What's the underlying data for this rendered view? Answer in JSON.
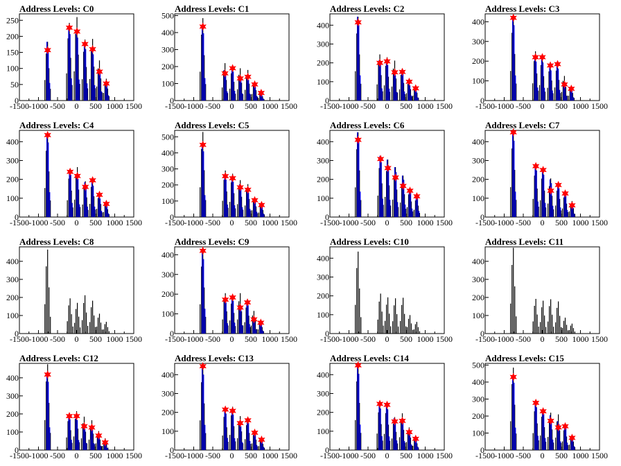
{
  "colors": {
    "histogram": "#000000",
    "fit": "#0000ee",
    "marker": "#ff0000",
    "frame": "#000000"
  },
  "chart_data": [
    {
      "type": "bar",
      "title": "Address Levels: C0",
      "xlim": [
        -1500,
        1500
      ],
      "ylim": [
        0,
        270
      ],
      "yticks": [
        0,
        50,
        100,
        150,
        200,
        250
      ],
      "xticks": [
        -1500,
        -1000,
        -500,
        0,
        500,
        1000,
        1500
      ],
      "peaks": [
        {
          "x": -760,
          "hist": 183,
          "fit": 183,
          "marker": 157
        },
        {
          "x": -190,
          "hist": 242,
          "fit": 230,
          "marker": 227
        },
        {
          "x": 10,
          "hist": 260,
          "fit": 218,
          "marker": 215
        },
        {
          "x": 220,
          "hist": 190,
          "fit": 178,
          "marker": 176
        },
        {
          "x": 420,
          "hist": 192,
          "fit": 160,
          "marker": 160
        },
        {
          "x": 600,
          "hist": 125,
          "fit": 95,
          "marker": 90
        },
        {
          "x": 780,
          "hist": 68,
          "fit": 55,
          "marker": 53
        }
      ]
    },
    {
      "type": "bar",
      "title": "Address Levels: C1",
      "xlim": [
        -1500,
        1500
      ],
      "ylim": [
        0,
        510
      ],
      "yticks": [
        0,
        100,
        200,
        300,
        400,
        500
      ],
      "xticks": [
        -1500,
        -1000,
        -500,
        0,
        500,
        1000,
        1500
      ],
      "peaks": [
        {
          "x": -760,
          "hist": 485,
          "fit": 440,
          "marker": 435
        },
        {
          "x": -180,
          "hist": 220,
          "fit": 180,
          "marker": 160
        },
        {
          "x": 20,
          "hist": 200,
          "fit": 190,
          "marker": 190
        },
        {
          "x": 220,
          "hist": 190,
          "fit": 140,
          "marker": 130
        },
        {
          "x": 420,
          "hist": 180,
          "fit": 135,
          "marker": 140
        },
        {
          "x": 600,
          "hist": 110,
          "fit": 90,
          "marker": 95
        },
        {
          "x": 770,
          "hist": 45,
          "fit": 40,
          "marker": 45
        }
      ]
    },
    {
      "type": "bar",
      "title": "Address Levels: C2",
      "xlim": [
        -1500,
        1500
      ],
      "ylim": [
        0,
        460
      ],
      "yticks": [
        0,
        100,
        200,
        300,
        400
      ],
      "xticks": [
        -1500,
        -1000,
        -500,
        0,
        500,
        1000,
        1500
      ],
      "peaks": [
        {
          "x": -760,
          "hist": 445,
          "fit": 445,
          "marker": 415
        },
        {
          "x": -190,
          "hist": 245,
          "fit": 215,
          "marker": 200
        },
        {
          "x": 0,
          "hist": 230,
          "fit": 210,
          "marker": 208
        },
        {
          "x": 200,
          "hist": 212,
          "fit": 150,
          "marker": 150
        },
        {
          "x": 400,
          "hist": 170,
          "fit": 160,
          "marker": 152
        },
        {
          "x": 580,
          "hist": 110,
          "fit": 90,
          "marker": 100
        },
        {
          "x": 750,
          "hist": 75,
          "fit": 55,
          "marker": 65
        }
      ]
    },
    {
      "type": "bar",
      "title": "Address Levels: C3",
      "xlim": [
        -1500,
        1500
      ],
      "ylim": [
        0,
        440
      ],
      "yticks": [
        0,
        100,
        200,
        300,
        400
      ],
      "xticks": [
        -1500,
        -1000,
        -500,
        0,
        500,
        1000,
        1500
      ],
      "peaks": [
        {
          "x": -760,
          "hist": 430,
          "fit": 425,
          "marker": 420
        },
        {
          "x": -180,
          "hist": 250,
          "fit": 220,
          "marker": 220
        },
        {
          "x": 0,
          "hist": 225,
          "fit": 215,
          "marker": 220
        },
        {
          "x": 210,
          "hist": 185,
          "fit": 170,
          "marker": 178
        },
        {
          "x": 400,
          "hist": 190,
          "fit": 180,
          "marker": 185
        },
        {
          "x": 580,
          "hist": 125,
          "fit": 80,
          "marker": 82
        },
        {
          "x": 760,
          "hist": 70,
          "fit": 55,
          "marker": 60
        }
      ]
    },
    {
      "type": "bar",
      "title": "Address Levels: C4",
      "xlim": [
        -1500,
        1500
      ],
      "ylim": [
        0,
        460
      ],
      "yticks": [
        0,
        100,
        200,
        300,
        400
      ],
      "xticks": [
        -1500,
        -1000,
        -500,
        0,
        500,
        1000,
        1500
      ],
      "peaks": [
        {
          "x": -760,
          "hist": 440,
          "fit": 440,
          "marker": 435
        },
        {
          "x": -170,
          "hist": 255,
          "fit": 250,
          "marker": 240
        },
        {
          "x": 20,
          "hist": 265,
          "fit": 225,
          "marker": 218
        },
        {
          "x": 230,
          "hist": 190,
          "fit": 185,
          "marker": 160
        },
        {
          "x": 420,
          "hist": 200,
          "fit": 185,
          "marker": 195
        },
        {
          "x": 600,
          "hist": 125,
          "fit": 110,
          "marker": 118
        },
        {
          "x": 780,
          "hist": 75,
          "fit": 65,
          "marker": 70
        }
      ]
    },
    {
      "type": "bar",
      "title": "Address Levels: C5",
      "xlim": [
        -1500,
        1500
      ],
      "ylim": [
        0,
        540
      ],
      "yticks": [
        0,
        100,
        200,
        300,
        400,
        500
      ],
      "xticks": [
        -1500,
        -1000,
        -500,
        0,
        500,
        1000,
        1500
      ],
      "peaks": [
        {
          "x": -760,
          "hist": 530,
          "fit": 455,
          "marker": 450
        },
        {
          "x": -170,
          "hist": 290,
          "fit": 260,
          "marker": 255
        },
        {
          "x": 20,
          "hist": 270,
          "fit": 245,
          "marker": 242
        },
        {
          "x": 220,
          "hist": 230,
          "fit": 205,
          "marker": 185
        },
        {
          "x": 420,
          "hist": 205,
          "fit": 170,
          "marker": 170
        },
        {
          "x": 600,
          "hist": 120,
          "fit": 110,
          "marker": 105
        },
        {
          "x": 780,
          "hist": 80,
          "fit": 70,
          "marker": 75
        }
      ]
    },
    {
      "type": "bar",
      "title": "Address Levels: C6",
      "xlim": [
        -1500,
        1500
      ],
      "ylim": [
        0,
        460
      ],
      "yticks": [
        0,
        100,
        200,
        300,
        400
      ],
      "xticks": [
        -1500,
        -1000,
        -500,
        0,
        500,
        1000,
        1500
      ],
      "peaks": [
        {
          "x": -760,
          "hist": 450,
          "fit": 450,
          "marker": 410
        },
        {
          "x": -170,
          "hist": 325,
          "fit": 325,
          "marker": 308
        },
        {
          "x": 20,
          "hist": 305,
          "fit": 305,
          "marker": 260
        },
        {
          "x": 220,
          "hist": 265,
          "fit": 265,
          "marker": 210
        },
        {
          "x": 420,
          "hist": 220,
          "fit": 220,
          "marker": 165
        },
        {
          "x": 600,
          "hist": 150,
          "fit": 150,
          "marker": 140
        },
        {
          "x": 780,
          "hist": 110,
          "fit": 110,
          "marker": 110
        }
      ]
    },
    {
      "type": "bar",
      "title": "Address Levels: C7",
      "xlim": [
        -1500,
        1500
      ],
      "ylim": [
        0,
        460
      ],
      "yticks": [
        0,
        100,
        200,
        300,
        400
      ],
      "xticks": [
        -1500,
        -1000,
        -500,
        0,
        500,
        1000,
        1500
      ],
      "peaks": [
        {
          "x": -760,
          "hist": 455,
          "fit": 450,
          "marker": 450
        },
        {
          "x": -170,
          "hist": 275,
          "fit": 275,
          "marker": 270
        },
        {
          "x": 20,
          "hist": 255,
          "fit": 250,
          "marker": 250
        },
        {
          "x": 220,
          "hist": 205,
          "fit": 200,
          "marker": 140
        },
        {
          "x": 420,
          "hist": 175,
          "fit": 170,
          "marker": 170
        },
        {
          "x": 600,
          "hist": 130,
          "fit": 125,
          "marker": 125
        },
        {
          "x": 780,
          "hist": 85,
          "fit": 60,
          "marker": 62
        }
      ]
    },
    {
      "type": "bar",
      "title": "Address Levels: C8",
      "xlim": [
        -1500,
        1500
      ],
      "ylim": [
        0,
        480
      ],
      "yticks": [
        0,
        100,
        200,
        300,
        400
      ],
      "xticks": [
        -1500,
        -1000,
        -500,
        0,
        500,
        1000,
        1500
      ],
      "peaks": [
        {
          "x": -760,
          "hist": 465
        },
        {
          "x": -170,
          "hist": 195
        },
        {
          "x": 20,
          "hist": 170
        },
        {
          "x": 220,
          "hist": 212
        },
        {
          "x": 420,
          "hist": 182
        },
        {
          "x": 600,
          "hist": 110
        },
        {
          "x": 780,
          "hist": 65
        }
      ]
    },
    {
      "type": "bar",
      "title": "Address Levels: C9",
      "xlim": [
        -1500,
        1500
      ],
      "ylim": [
        0,
        440
      ],
      "yticks": [
        0,
        100,
        200,
        300,
        400
      ],
      "xticks": [
        -1500,
        -1000,
        -500,
        0,
        500,
        1000,
        1500
      ],
      "peaks": [
        {
          "x": -760,
          "hist": 425,
          "fit": 420,
          "marker": 420
        },
        {
          "x": -170,
          "hist": 205,
          "fit": 175,
          "marker": 172
        },
        {
          "x": 20,
          "hist": 190,
          "fit": 185,
          "marker": 183
        },
        {
          "x": 220,
          "hist": 205,
          "fit": 140,
          "marker": 132
        },
        {
          "x": 410,
          "hist": 165,
          "fit": 160,
          "marker": 158
        },
        {
          "x": 580,
          "hist": 115,
          "fit": 70,
          "marker": 72
        },
        {
          "x": 760,
          "hist": 60,
          "fit": 50,
          "marker": 55
        }
      ]
    },
    {
      "type": "bar",
      "title": "Address Levels: C10",
      "xlim": [
        -1500,
        1500
      ],
      "ylim": [
        0,
        460
      ],
      "yticks": [
        0,
        100,
        200,
        300,
        400
      ],
      "xticks": [
        -1500,
        -1000,
        -500,
        0,
        500,
        1000,
        1500
      ],
      "peaks": [
        {
          "x": -760,
          "hist": 435
        },
        {
          "x": -170,
          "hist": 212
        },
        {
          "x": 20,
          "hist": 192
        },
        {
          "x": 220,
          "hist": 187
        },
        {
          "x": 420,
          "hist": 190
        },
        {
          "x": 600,
          "hist": 98
        },
        {
          "x": 780,
          "hist": 62
        }
      ]
    },
    {
      "type": "bar",
      "title": "Address Levels: C11",
      "xlim": [
        -1500,
        1500
      ],
      "ylim": [
        0,
        480
      ],
      "yticks": [
        0,
        100,
        200,
        300,
        400
      ],
      "xticks": [
        -1500,
        -1000,
        -500,
        0,
        500,
        1000,
        1500
      ],
      "peaks": [
        {
          "x": -760,
          "hist": 475
        },
        {
          "x": -170,
          "hist": 192
        },
        {
          "x": 20,
          "hist": 182
        },
        {
          "x": 220,
          "hist": 190
        },
        {
          "x": 420,
          "hist": 178
        },
        {
          "x": 600,
          "hist": 88
        },
        {
          "x": 780,
          "hist": 55
        }
      ]
    },
    {
      "type": "bar",
      "title": "Address Levels: C12",
      "xlim": [
        -1500,
        1500
      ],
      "ylim": [
        0,
        480
      ],
      "yticks": [
        0,
        100,
        200,
        300,
        400
      ],
      "xticks": [
        -1500,
        -1000,
        -500,
        0,
        500,
        1000,
        1500
      ],
      "peaks": [
        {
          "x": -760,
          "hist": 475,
          "fit": 420,
          "marker": 418
        },
        {
          "x": -190,
          "hist": 200,
          "fit": 190,
          "marker": 188
        },
        {
          "x": 0,
          "hist": 215,
          "fit": 185,
          "marker": 188
        },
        {
          "x": 200,
          "hist": 185,
          "fit": 130,
          "marker": 132
        },
        {
          "x": 400,
          "hist": 165,
          "fit": 125,
          "marker": 125
        },
        {
          "x": 580,
          "hist": 105,
          "fit": 80,
          "marker": 80
        },
        {
          "x": 750,
          "hist": 65,
          "fit": 40,
          "marker": 42
        }
      ]
    },
    {
      "type": "bar",
      "title": "Address Levels: C13",
      "xlim": [
        -1500,
        1500
      ],
      "ylim": [
        0,
        460
      ],
      "yticks": [
        0,
        100,
        200,
        300,
        400
      ],
      "xticks": [
        -1500,
        -1000,
        -500,
        0,
        500,
        1000,
        1500
      ],
      "peaks": [
        {
          "x": -760,
          "hist": 450,
          "fit": 445,
          "marker": 445
        },
        {
          "x": -170,
          "hist": 220,
          "fit": 215,
          "marker": 215
        },
        {
          "x": 20,
          "hist": 230,
          "fit": 210,
          "marker": 208
        },
        {
          "x": 220,
          "hist": 180,
          "fit": 140,
          "marker": 143
        },
        {
          "x": 420,
          "hist": 165,
          "fit": 160,
          "marker": 158
        },
        {
          "x": 600,
          "hist": 100,
          "fit": 90,
          "marker": 92
        },
        {
          "x": 780,
          "hist": 60,
          "fit": 55,
          "marker": 55
        }
      ]
    },
    {
      "type": "bar",
      "title": "Address Levels: C14",
      "xlim": [
        -1500,
        1500
      ],
      "ylim": [
        0,
        460
      ],
      "yticks": [
        0,
        100,
        200,
        300,
        400
      ],
      "xticks": [
        -1500,
        -1000,
        -500,
        0,
        500,
        1000,
        1500
      ],
      "peaks": [
        {
          "x": -760,
          "hist": 455,
          "fit": 450,
          "marker": 450
        },
        {
          "x": -190,
          "hist": 250,
          "fit": 245,
          "marker": 245
        },
        {
          "x": 0,
          "hist": 245,
          "fit": 240,
          "marker": 240
        },
        {
          "x": 200,
          "hist": 175,
          "fit": 170,
          "marker": 152
        },
        {
          "x": 400,
          "hist": 195,
          "fit": 160,
          "marker": 155
        },
        {
          "x": 580,
          "hist": 120,
          "fit": 100,
          "marker": 95
        },
        {
          "x": 750,
          "hist": 65,
          "fit": 60,
          "marker": 60
        }
      ]
    },
    {
      "type": "bar",
      "title": "Address Levels: C15",
      "xlim": [
        -1500,
        1500
      ],
      "ylim": [
        0,
        510
      ],
      "yticks": [
        0,
        100,
        200,
        300,
        400,
        500
      ],
      "xticks": [
        -1500,
        -1000,
        -500,
        0,
        500,
        1000,
        1500
      ],
      "peaks": [
        {
          "x": -760,
          "hist": 485,
          "fit": 440,
          "marker": 430
        },
        {
          "x": -170,
          "hist": 285,
          "fit": 280,
          "marker": 278
        },
        {
          "x": 20,
          "hist": 245,
          "fit": 235,
          "marker": 228
        },
        {
          "x": 220,
          "hist": 220,
          "fit": 205,
          "marker": 172
        },
        {
          "x": 420,
          "hist": 210,
          "fit": 170,
          "marker": 133
        },
        {
          "x": 600,
          "hist": 145,
          "fit": 145,
          "marker": 140
        },
        {
          "x": 780,
          "hist": 90,
          "fit": 75,
          "marker": 72
        }
      ]
    }
  ]
}
